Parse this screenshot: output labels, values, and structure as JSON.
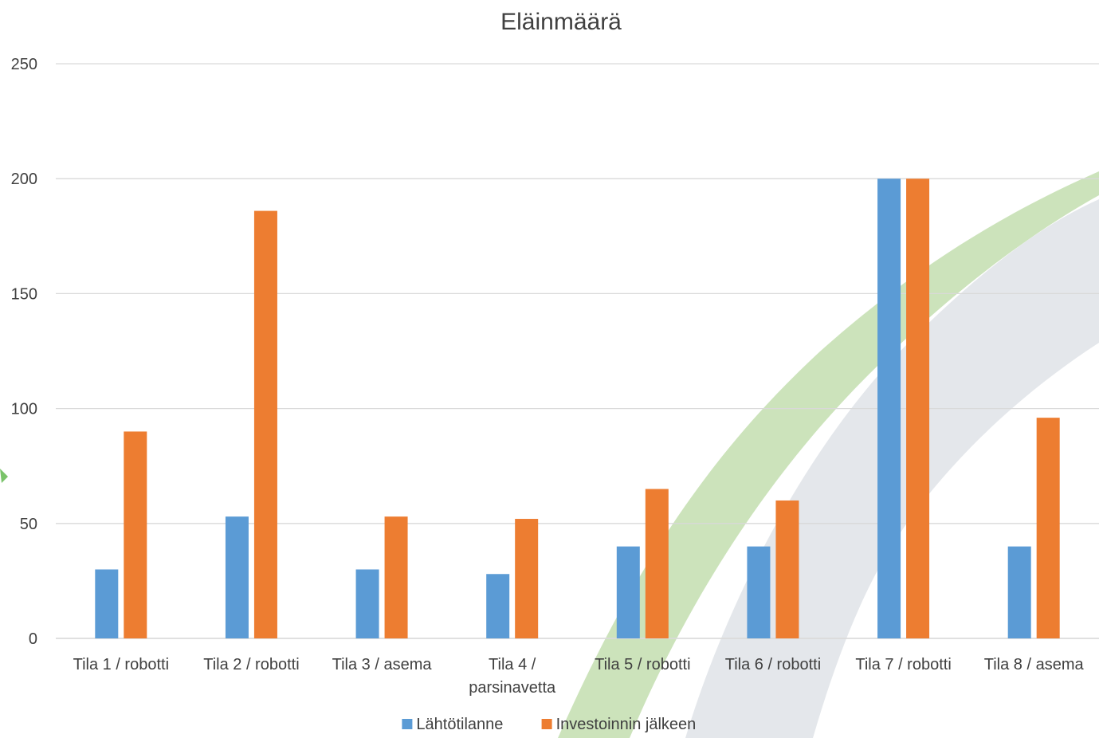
{
  "chart_data": {
    "type": "bar",
    "title": "Eläinmäärä",
    "xlabel": "",
    "ylabel": "",
    "ylim": [
      0,
      250
    ],
    "yticks": [
      0,
      50,
      100,
      150,
      200,
      250
    ],
    "grid": true,
    "legend_position": "bottom",
    "categories": [
      [
        "Tila 1 / robotti"
      ],
      [
        "Tila 2 / robotti"
      ],
      [
        "Tila 3 / asema"
      ],
      [
        "Tila  4 /",
        "parsinavetta"
      ],
      [
        "Tila 5 / robotti"
      ],
      [
        "Tila 6 / robotti"
      ],
      [
        "Tila 7 / robotti"
      ],
      [
        "Tila 8 / asema"
      ]
    ],
    "series": [
      {
        "name": "Lähtötilanne",
        "color": "#5b9bd5",
        "values": [
          30,
          53,
          30,
          28,
          40,
          40,
          200,
          40
        ]
      },
      {
        "name": "Investoinnin jälkeen",
        "color": "#ed7d31",
        "values": [
          90,
          186,
          53,
          52,
          65,
          60,
          200,
          96
        ]
      }
    ]
  },
  "colors": {
    "gridline": "#d9d9d9",
    "text": "#404040",
    "watermark_green": "#c6e0b4",
    "watermark_gray": "#dfe3e7"
  }
}
